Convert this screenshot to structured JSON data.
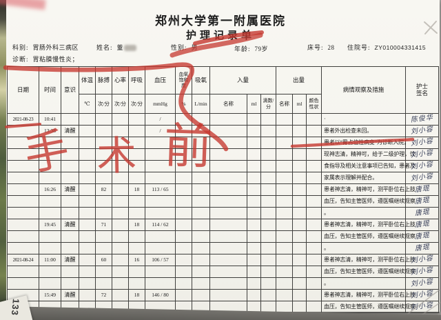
{
  "page": {
    "hospital": "郑州大学第一附属医院",
    "form_title": "护理记录单",
    "fields": {
      "dept_label": "科别:",
      "dept": "胃肠外科三病区",
      "name_label": "姓名:",
      "name": "董",
      "gender_label": "性别:",
      "gender": "男",
      "age_label": "年龄:",
      "age": "79岁",
      "bed_label": "床号:",
      "bed": "28",
      "admission_label": "住院号:",
      "admission_no": "ZY010004331415",
      "diagnosis_label": "诊断:",
      "diagnosis": "胃粘膜慢性炎；"
    }
  },
  "table": {
    "headers": {
      "date": "日期",
      "time": "时间",
      "consc": "意识",
      "temp": "体温",
      "pulse": "脉搏",
      "heart": "心率",
      "resp": "呼吸",
      "bp": "血压",
      "spo2": "血氧饱和度",
      "oxy": "吸氧",
      "intake_group": "入量",
      "output_group": "出量",
      "obs": "病情观察及措施",
      "nurse": "护士签名",
      "units": {
        "temp": "℃",
        "pulse": "次/分",
        "heart": "次/分",
        "resp": "次/分",
        "bp": "mmHg",
        "spo2": "%",
        "oxy": "L/min",
        "in_name": "名称",
        "in_ml": "ml",
        "drip": "滴数/分",
        "out_name": "名称",
        "out_ml": "ml",
        "color": "颜色性状"
      }
    },
    "rows": [
      {
        "date": "2021-08-23",
        "time": "10:41",
        "bp": "/",
        "obs": "·",
        "sig": "陈俊华"
      },
      {
        "time": "13:38",
        "consc": "清醒",
        "bp": "/",
        "obs": "患者外出检查未回。",
        "sig": "刘小容"
      },
      {
        "obs": "患者以“胃占位性病变”为诊断入院，",
        "sig": "刘小容"
      },
      {
        "obs": "现神志清，精神可，给于二级护理，饮",
        "sig": "刘小容"
      },
      {
        "obs": "食指导及相关注意事项已告知，患者及",
        "sig": "刘小容"
      },
      {
        "obs": "家属表示理解并配合。",
        "sig": "刘小容"
      },
      {
        "time": "16:26",
        "consc": "清醒",
        "pulse": "82",
        "resp": "18",
        "bp": "113 / 65",
        "obs": "患者神志清，精神可，测平卧位右上肢",
        "sig": "唐琨"
      },
      {
        "obs": "血压，告知主管医师，遵医嘱继续观察",
        "sig": "唐琨"
      },
      {
        "obs": "。",
        "sig": "唐琨"
      },
      {
        "time": "19:45",
        "consc": "清醒",
        "pulse": "71",
        "resp": "18",
        "bp": "114 / 62",
        "obs": "患者神志清，精神可，测平卧位右上肢",
        "sig": "唐琨"
      },
      {
        "obs": "血压，告知主管医师，遵医嘱继续观察",
        "sig": "唐琨"
      },
      {
        "obs": "。",
        "sig": "唐琨"
      },
      {
        "date": "2021-08-24",
        "time": "11:00",
        "consc": "清醒",
        "pulse": "60",
        "resp": "16",
        "bp": "106 / 57",
        "obs": "患者神志清，精神可，测平卧位右上肢",
        "sig": "刘小容"
      },
      {
        "obs": "血压，告知主管医师，遵医嘱继续观察",
        "sig": "刘小容"
      },
      {
        "obs": "。",
        "sig": "刘小容"
      },
      {
        "time": "15:49",
        "consc": "清醒",
        "pulse": "72",
        "resp": "18",
        "bp": "146 / 80",
        "obs": "患者神志清，精神可，测平卧位右上肢",
        "sig": "刘小容"
      },
      {
        "obs": "血压，告知主管医师，遵医嘱继续观察",
        "sig": "刘小容"
      }
    ]
  },
  "annotations": {
    "pre_surgery_chars": [
      "手",
      "术",
      "前"
    ],
    "page_number": "133",
    "red_pen_color": "#c6382f"
  }
}
